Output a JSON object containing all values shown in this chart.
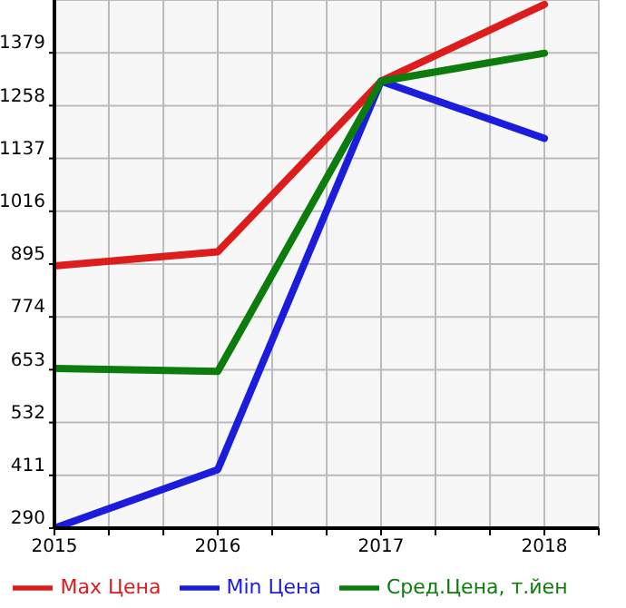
{
  "chart_data": {
    "type": "line",
    "x": [
      2015,
      2016,
      2017,
      2018
    ],
    "series": [
      {
        "name": "Max Цена",
        "color": "#dd1c1c",
        "values": [
          891,
          923,
          1314,
          1490
        ]
      },
      {
        "name": "Min Цена",
        "color": "#1c1cdd",
        "values": [
          290,
          424,
          1314,
          1183
        ]
      },
      {
        "name": "Сред.Цена, т.йен",
        "color": "#0c7c0c",
        "values": [
          656,
          649,
          1314,
          1378
        ]
      }
    ],
    "xlim": [
      2015,
      2018.333
    ],
    "xticks": [
      2015,
      {
        "value": 2015.333,
        "label": null
      },
      {
        "value": 2015.667,
        "label": null
      },
      2016,
      {
        "value": 2016.333,
        "label": null
      },
      {
        "value": 2016.667,
        "label": null
      },
      2017,
      {
        "value": 2017.333,
        "label": null
      },
      {
        "value": 2017.667,
        "label": null
      },
      2018,
      {
        "value": 2018.333,
        "label": null
      }
    ],
    "ylim": [
      290,
      1500
    ],
    "yticks": [
      290,
      411,
      532,
      653,
      774,
      895,
      1016,
      1137,
      1258,
      1379
    ],
    "grid": true,
    "legend": "bottom",
    "marker": "none",
    "line_style": "solid"
  }
}
